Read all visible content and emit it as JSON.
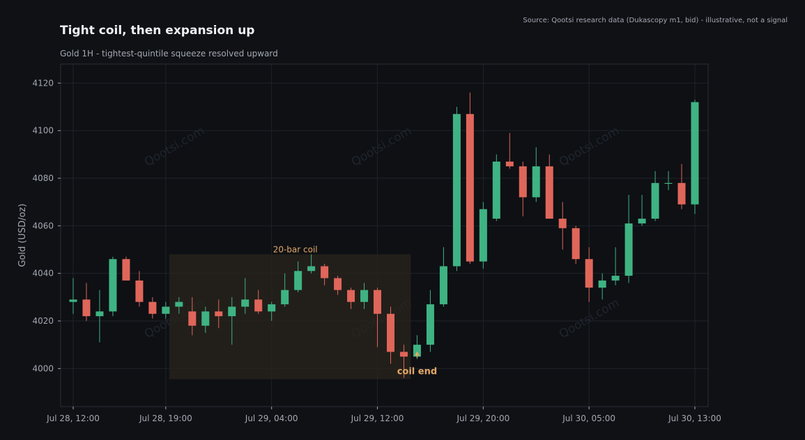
{
  "header": {
    "title": "Tight coil, then expansion up",
    "subtitle": "Gold 1H - tightest-quintile squeeze resolved upward",
    "source": "Source: Qootsi research data (Dukascopy m1, bid) - illustrative, not a signal"
  },
  "watermark": "Qootsi.com",
  "colors": {
    "background": "#0f1115",
    "up": "#3fb383",
    "down": "#e0665a",
    "accent": "#e3a868"
  },
  "chart_data": {
    "type": "candlestick",
    "ylabel": "Gold (USD/oz)",
    "ylim": [
      3984,
      4128
    ],
    "yticks": [
      4000,
      4020,
      4040,
      4060,
      4080,
      4100,
      4120
    ],
    "xticks": [
      {
        "index": 0,
        "label": "Jul 28, 12:00"
      },
      {
        "index": 7,
        "label": "Jul 28, 19:00"
      },
      {
        "index": 15,
        "label": "Jul 29, 04:00"
      },
      {
        "index": 23,
        "label": "Jul 29, 12:00"
      },
      {
        "index": 31,
        "label": "Jul 29, 20:00"
      },
      {
        "index": 39,
        "label": "Jul 30, 05:00"
      },
      {
        "index": 47,
        "label": "Jul 30, 13:00"
      }
    ],
    "grid": true,
    "candles": [
      {
        "o": 4028,
        "h": 4038,
        "l": 4023,
        "c": 4029
      },
      {
        "o": 4029,
        "h": 4036,
        "l": 4020,
        "c": 4022
      },
      {
        "o": 4022,
        "h": 4033,
        "l": 4011,
        "c": 4024
      },
      {
        "o": 4024,
        "h": 4047,
        "l": 4022,
        "c": 4046
      },
      {
        "o": 4046,
        "h": 4047,
        "l": 4037,
        "c": 4037
      },
      {
        "o": 4037,
        "h": 4041,
        "l": 4026,
        "c": 4028
      },
      {
        "o": 4028,
        "h": 4030,
        "l": 4021,
        "c": 4023
      },
      {
        "o": 4023,
        "h": 4028,
        "l": 4021,
        "c": 4026
      },
      {
        "o": 4026,
        "h": 4030,
        "l": 4023,
        "c": 4028
      },
      {
        "o": 4024,
        "h": 4030,
        "l": 4014,
        "c": 4018
      },
      {
        "o": 4018,
        "h": 4026,
        "l": 4015,
        "c": 4024
      },
      {
        "o": 4024,
        "h": 4029,
        "l": 4017,
        "c": 4022
      },
      {
        "o": 4022,
        "h": 4030,
        "l": 4010,
        "c": 4026
      },
      {
        "o": 4026,
        "h": 4038,
        "l": 4023,
        "c": 4029
      },
      {
        "o": 4029,
        "h": 4033,
        "l": 4023,
        "c": 4024
      },
      {
        "o": 4024,
        "h": 4028,
        "l": 4020,
        "c": 4027
      },
      {
        "o": 4027,
        "h": 4040,
        "l": 4026,
        "c": 4033
      },
      {
        "o": 4033,
        "h": 4045,
        "l": 4032,
        "c": 4041
      },
      {
        "o": 4041,
        "h": 4048,
        "l": 4040,
        "c": 4043
      },
      {
        "o": 4043,
        "h": 4044,
        "l": 4035,
        "c": 4038
      },
      {
        "o": 4038,
        "h": 4039,
        "l": 4031,
        "c": 4033
      },
      {
        "o": 4033,
        "h": 4034,
        "l": 4025,
        "c": 4028
      },
      {
        "o": 4028,
        "h": 4036,
        "l": 4025,
        "c": 4033
      },
      {
        "o": 4033,
        "h": 4034,
        "l": 4009,
        "c": 4023
      },
      {
        "o": 4023,
        "h": 4026,
        "l": 4002,
        "c": 4007
      },
      {
        "o": 4007,
        "h": 4010,
        "l": 3996,
        "c": 4005
      },
      {
        "o": 4005,
        "h": 4014,
        "l": 4004,
        "c": 4010
      },
      {
        "o": 4010,
        "h": 4033,
        "l": 4007,
        "c": 4027
      },
      {
        "o": 4027,
        "h": 4051,
        "l": 4026,
        "c": 4043
      },
      {
        "o": 4043,
        "h": 4110,
        "l": 4041,
        "c": 4107
      },
      {
        "o": 4107,
        "h": 4116,
        "l": 4044,
        "c": 4045
      },
      {
        "o": 4045,
        "h": 4070,
        "l": 4042,
        "c": 4067
      },
      {
        "o": 4063,
        "h": 4090,
        "l": 4062,
        "c": 4087
      },
      {
        "o": 4087,
        "h": 4099,
        "l": 4084,
        "c": 4085
      },
      {
        "o": 4085,
        "h": 4087,
        "l": 4064,
        "c": 4072
      },
      {
        "o": 4072,
        "h": 4093,
        "l": 4070,
        "c": 4085
      },
      {
        "o": 4085,
        "h": 4090,
        "l": 4063,
        "c": 4063
      },
      {
        "o": 4063,
        "h": 4070,
        "l": 4050,
        "c": 4059
      },
      {
        "o": 4059,
        "h": 4060,
        "l": 4044,
        "c": 4046
      },
      {
        "o": 4046,
        "h": 4051,
        "l": 4028,
        "c": 4034
      },
      {
        "o": 4034,
        "h": 4040,
        "l": 4029,
        "c": 4037
      },
      {
        "o": 4037,
        "h": 4051,
        "l": 4035,
        "c": 4039
      },
      {
        "o": 4039,
        "h": 4073,
        "l": 4036,
        "c": 4061
      },
      {
        "o": 4061,
        "h": 4073,
        "l": 4060,
        "c": 4063
      },
      {
        "o": 4063,
        "h": 4083,
        "l": 4062,
        "c": 4078
      },
      {
        "o": 4078,
        "h": 4083,
        "l": 4075,
        "c": 4078
      },
      {
        "o": 4078,
        "h": 4086,
        "l": 4067,
        "c": 4069
      },
      {
        "o": 4069,
        "h": 4113,
        "l": 4065,
        "c": 4112
      }
    ],
    "coil_zone": {
      "start_index": 7,
      "end_index": 25,
      "y_range": [
        3995.5,
        4048
      ],
      "label": "20-bar coil"
    },
    "coil_end": {
      "index": 26,
      "label": "coil end"
    }
  }
}
